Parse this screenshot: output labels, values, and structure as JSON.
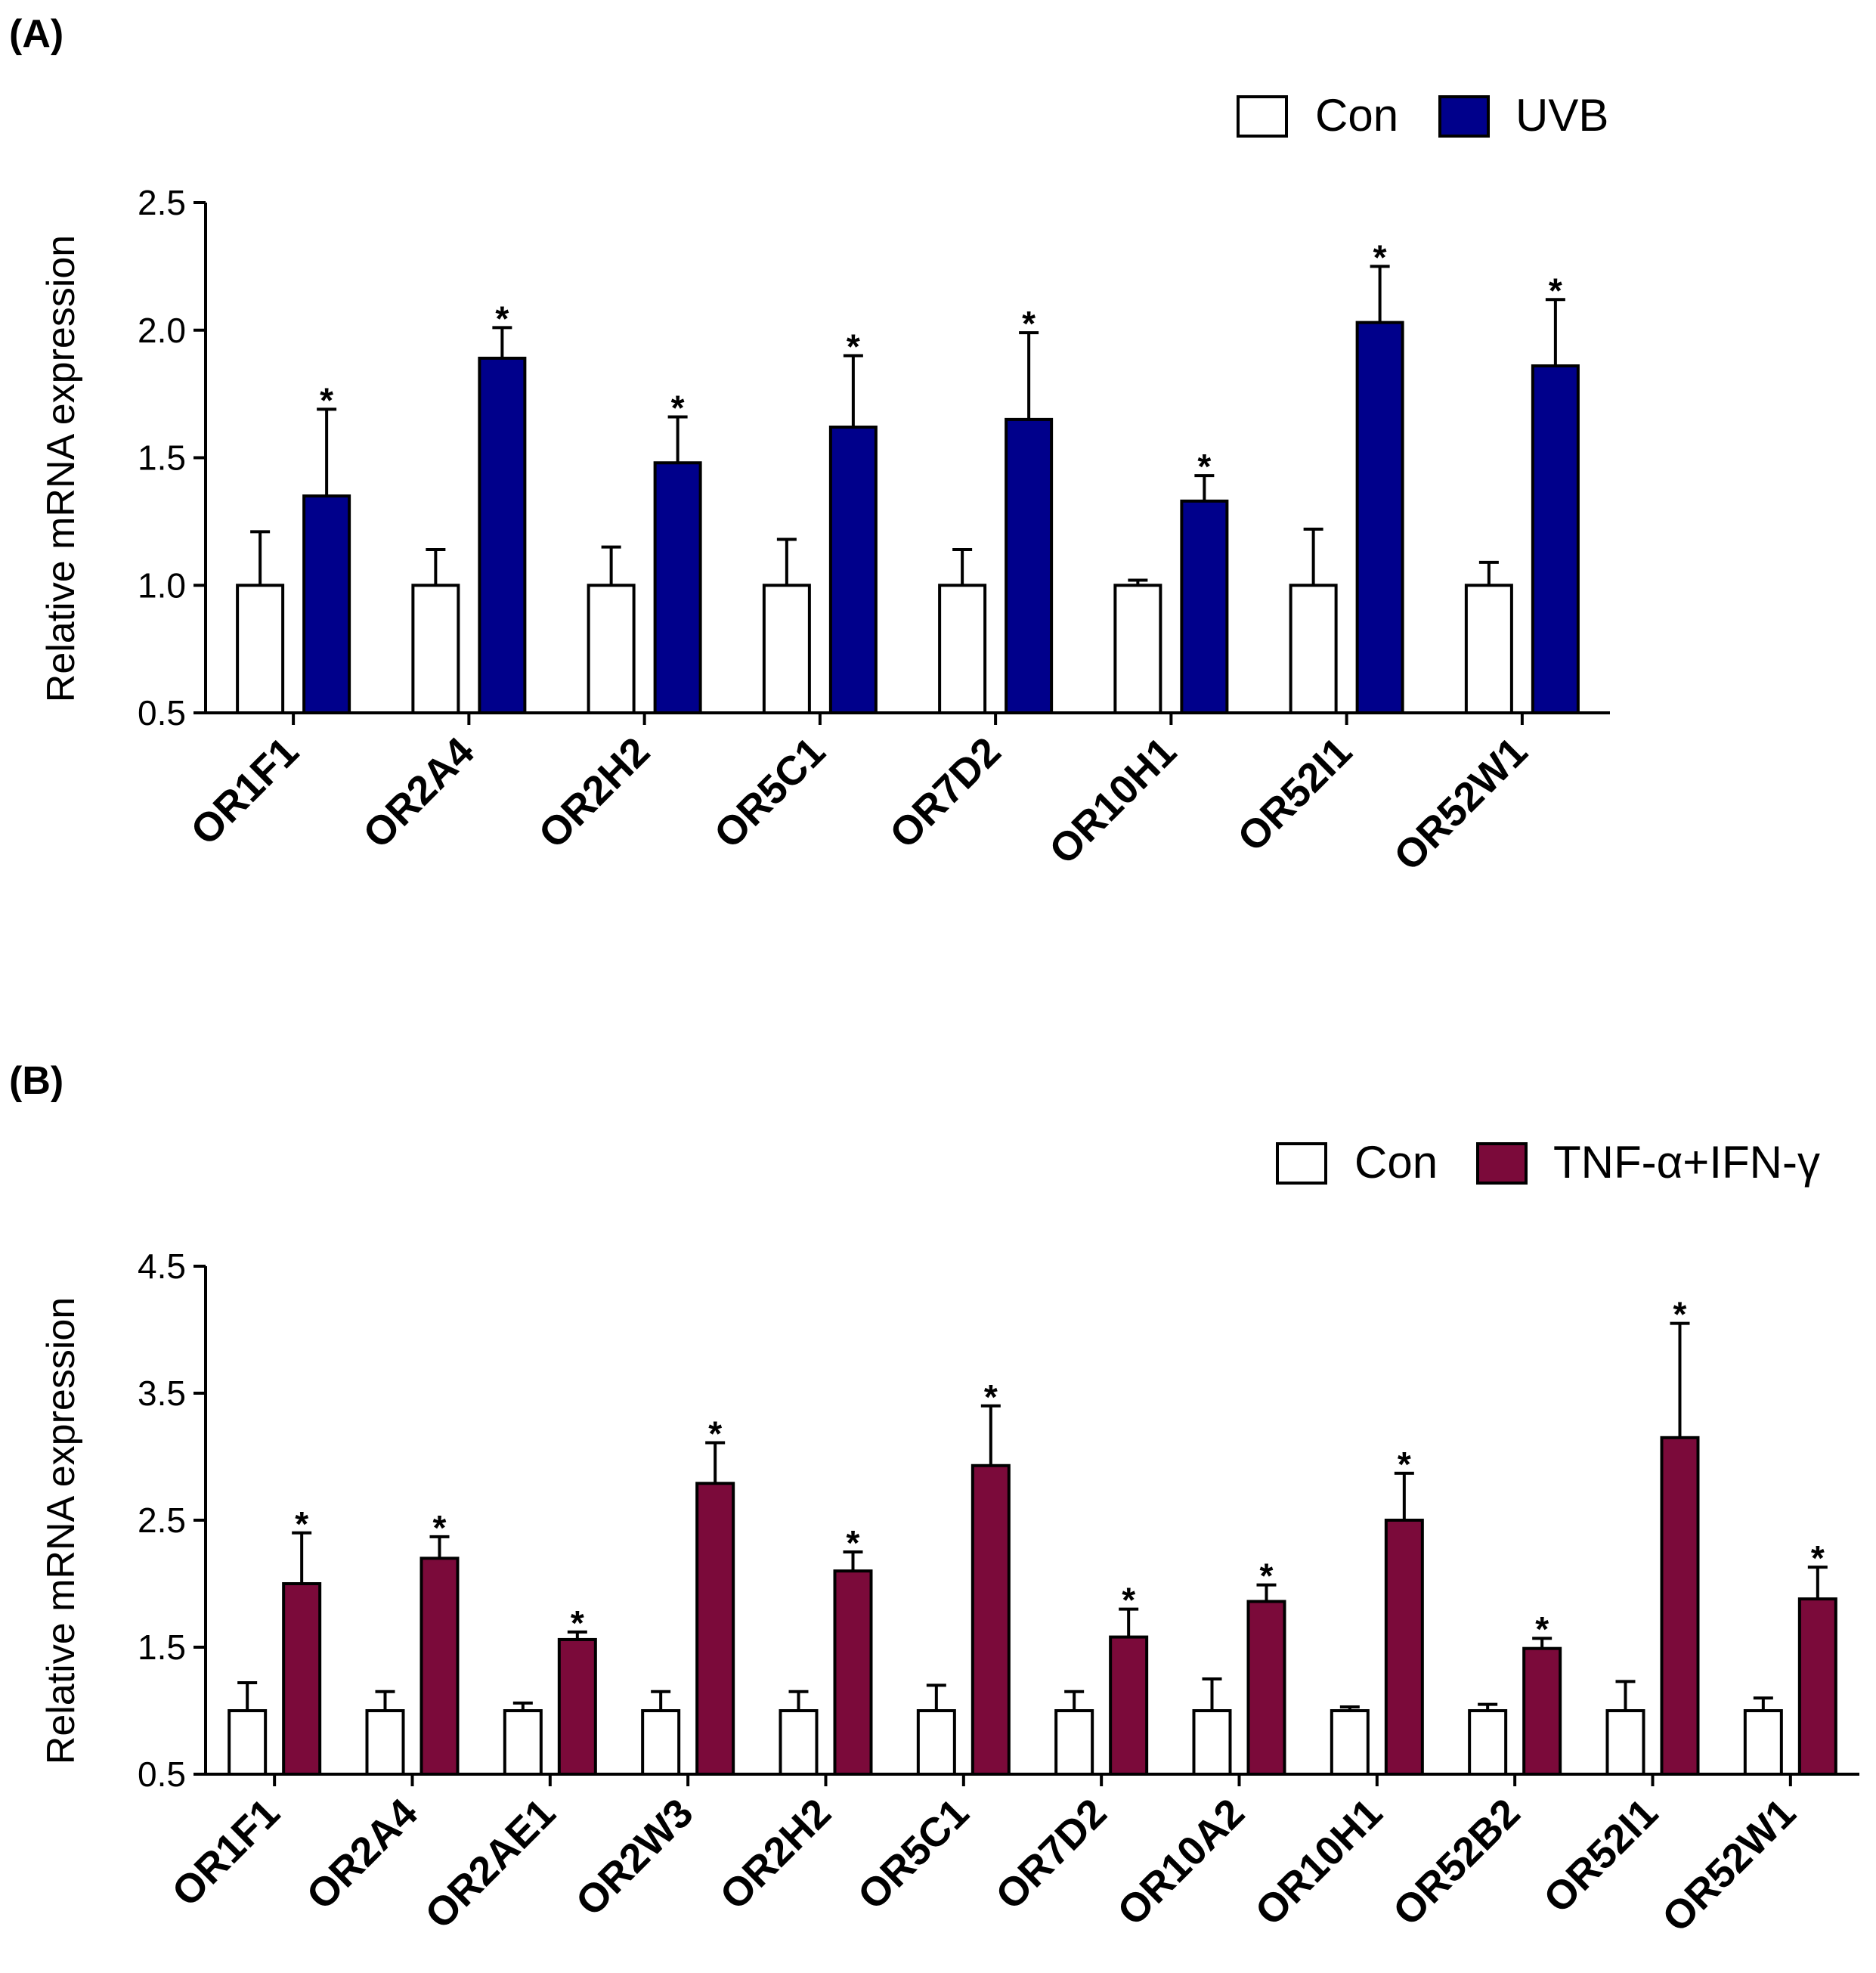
{
  "colors": {
    "control": "#ffffff",
    "uvb": "#00008b",
    "tnf_ifn": "#7b0a3a",
    "stroke": "#000000"
  },
  "chart_data": [
    {
      "panel": "(A)",
      "type": "bar",
      "ylabel": "Relative mRNA expression",
      "ylim": [
        0.5,
        2.5
      ],
      "yticks": [
        0.5,
        1.0,
        1.5,
        2.0,
        2.5
      ],
      "ytick_labels": [
        "0.5",
        "1.0",
        "1.5",
        "2.0",
        "2.5"
      ],
      "legend": [
        "Con",
        "UVB"
      ],
      "legend_position": "top-right",
      "categories": [
        "OR1F1",
        "OR2A4",
        "OR2H2",
        "OR5C1",
        "OR7D2",
        "OR10H1",
        "OR52I1",
        "OR52W1"
      ],
      "series": [
        {
          "name": "Con",
          "values": [
            1.0,
            1.0,
            1.0,
            1.0,
            1.0,
            1.0,
            1.0,
            1.0
          ],
          "errors": [
            0.21,
            0.14,
            0.15,
            0.18,
            0.14,
            0.02,
            0.22,
            0.09
          ]
        },
        {
          "name": "UVB",
          "values": [
            1.35,
            1.89,
            1.48,
            1.62,
            1.65,
            1.33,
            2.03,
            1.86
          ],
          "errors": [
            0.34,
            0.12,
            0.18,
            0.28,
            0.34,
            0.1,
            0.22,
            0.26
          ]
        }
      ],
      "significance": [
        "*",
        "*",
        "*",
        "*",
        "*",
        "*",
        "*",
        "*"
      ]
    },
    {
      "panel": "(B)",
      "type": "bar",
      "ylabel": "Relative mRNA expression",
      "ylim": [
        0.5,
        4.5
      ],
      "yticks": [
        0.5,
        1.5,
        2.5,
        3.5,
        4.5
      ],
      "ytick_labels": [
        "0.5",
        "1.5",
        "2.5",
        "3.5",
        "4.5"
      ],
      "legend": [
        "Con",
        "TNF-α+IFN-γ"
      ],
      "legend_position": "top-right",
      "categories": [
        "OR1F1",
        "OR2A4",
        "OR2AE1",
        "OR2W3",
        "OR2H2",
        "OR5C1",
        "OR7D2",
        "OR10A2",
        "OR10H1",
        "OR52B2",
        "OR52I1",
        "OR52W1"
      ],
      "series": [
        {
          "name": "Con",
          "values": [
            1.0,
            1.0,
            1.0,
            1.0,
            1.0,
            1.0,
            1.0,
            1.0,
            1.0,
            1.0,
            1.0,
            1.0
          ],
          "errors": [
            0.22,
            0.15,
            0.06,
            0.15,
            0.15,
            0.2,
            0.15,
            0.25,
            0.03,
            0.05,
            0.23,
            0.1
          ]
        },
        {
          "name": "TNF-α+IFN-γ",
          "values": [
            2.0,
            2.2,
            1.56,
            2.79,
            2.1,
            2.93,
            1.58,
            1.86,
            2.5,
            1.49,
            3.15,
            1.88
          ],
          "errors": [
            0.4,
            0.17,
            0.06,
            0.32,
            0.15,
            0.47,
            0.22,
            0.13,
            0.37,
            0.08,
            0.9,
            0.25
          ]
        }
      ],
      "significance": [
        "*",
        "*",
        "*",
        "*",
        "*",
        "*",
        "*",
        "*",
        "*",
        "*",
        "*",
        "*"
      ]
    }
  ]
}
